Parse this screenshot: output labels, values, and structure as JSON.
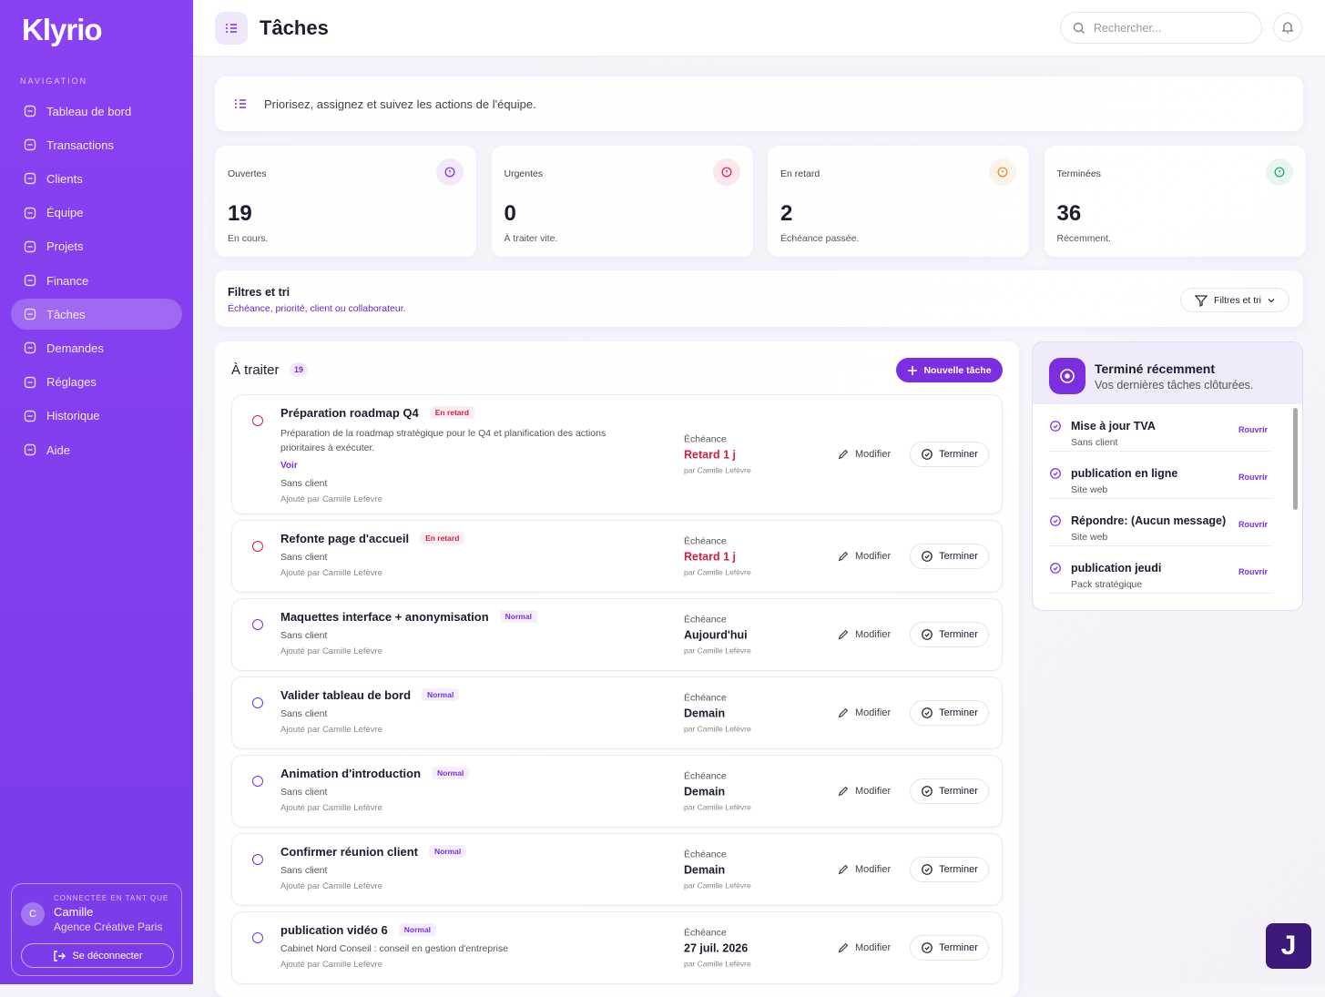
{
  "sidebar": {
    "logo": "Klyrio",
    "nav_heading": "NAVIGATION",
    "nav": [
      "Tableau de bord",
      "Transactions",
      "Clients",
      "Équipe",
      "Projets",
      "Finance",
      "Tâches",
      "Demandes",
      "Réglages",
      "Historique",
      "Aide"
    ],
    "user": {
      "heading": "CONNECTÉE EN TANT QUE",
      "initial": "C",
      "name": "Camille",
      "org": "Agence Créative Paris",
      "logout": "Se déconnecter"
    }
  },
  "header": {
    "title": "Tâches",
    "search_placeholder": "Rechercher..."
  },
  "intro": "Priorisez, assignez et suivez les actions de l'équipe.",
  "stats": [
    {
      "label": "Ouvertes",
      "value": 19,
      "note": "En cours.",
      "color": "#7b2fe0"
    },
    {
      "label": "Urgentes",
      "value": 0,
      "note": "À traiter vite.",
      "color": "#d61f45"
    },
    {
      "label": "En retard",
      "value": 2,
      "note": "Échéance passée.",
      "color": "#e6892a"
    },
    {
      "label": "Terminées",
      "value": 36,
      "note": "Récemment.",
      "color": "#1fa463"
    }
  ],
  "filters": {
    "title": "Filtres et tri",
    "subtitle": "Échéance, priorité, client ou collaborateur.",
    "button": "Filtres et tri"
  },
  "tasks": {
    "title": "À traiter",
    "count": 19,
    "new_button": "Nouvelle tâche",
    "due_label": "Échéance",
    "edit": "Modifier",
    "complete": "Terminer",
    "items": [
      {
        "title": "Préparation roadmap Q4",
        "badge": "En retard",
        "badge_color": "#d61f45",
        "description": "Préparation de la roadmap stratégique pour le Q4 et planification des actions prioritaires à exécuter.",
        "link": "Voir",
        "client": "Sans client",
        "added_by": "Ajouté par Camille Lefèvre",
        "due": "Retard 1 j",
        "due_color": "#d61f45",
        "due_by": "par Camille Lefèvre"
      },
      {
        "title": "Refonte page d'accueil",
        "badge": "En retard",
        "badge_color": "#d61f45",
        "client": "Sans client",
        "added_by": "Ajouté par Camille Lefèvre",
        "due": "Retard 1 j",
        "due_color": "#d61f45",
        "due_by": "par Camille Lefèvre"
      },
      {
        "title": "Maquettes interface + anonymisation",
        "badge": "Normal",
        "badge_color": "#7b2fe0",
        "client": "Sans client",
        "added_by": "Ajouté par Camille Lefèvre",
        "due": "Aujourd'hui",
        "due_color": "#1d1b2e",
        "due_by": "par Camille Lefèvre"
      },
      {
        "title": "Valider tableau de bord",
        "badge": "Normal",
        "badge_color": "#7b2fe0",
        "client": "Sans client",
        "added_by": "Ajouté par Camille Lefèvre",
        "due": "Demain",
        "due_color": "#1d1b2e",
        "due_by": "par Camille Lefèvre"
      },
      {
        "title": "Animation d'introduction",
        "badge": "Normal",
        "badge_color": "#7b2fe0",
        "client": "Sans client",
        "added_by": "Ajouté par Camille Lefèvre",
        "due": "Demain",
        "due_color": "#1d1b2e",
        "due_by": "par Camille Lefèvre"
      },
      {
        "title": "Confirmer réunion client",
        "badge": "Normal",
        "badge_color": "#7b2fe0",
        "client": "Sans client",
        "added_by": "Ajouté par Camille Lefèvre",
        "due": "Demain",
        "due_color": "#1d1b2e",
        "due_by": "par Camille Lefèvre"
      },
      {
        "title": "publication vidéo 6",
        "badge": "Normal",
        "badge_color": "#7b2fe0",
        "client": "Cabinet Nord Conseil : conseil en gestion d'entreprise",
        "added_by": "Ajouté par Camille Lefèvre",
        "due": "27 juil. 2026",
        "due_color": "#1d1b2e",
        "due_by": "par Camille Lefèvre"
      }
    ]
  },
  "recent": {
    "title": "Terminé récemment",
    "subtitle": "Vos dernières tâches clôturées.",
    "reopen": "Rouvrir",
    "items": [
      {
        "title": "Mise à jour TVA",
        "subtitle": "Sans client"
      },
      {
        "title": "publication en ligne",
        "subtitle": "Site web"
      },
      {
        "title": "Répondre: (Aucun message)",
        "subtitle": "Site web"
      },
      {
        "title": "publication jeudi",
        "subtitle": "Pack stratégique"
      }
    ]
  },
  "fab": "J"
}
